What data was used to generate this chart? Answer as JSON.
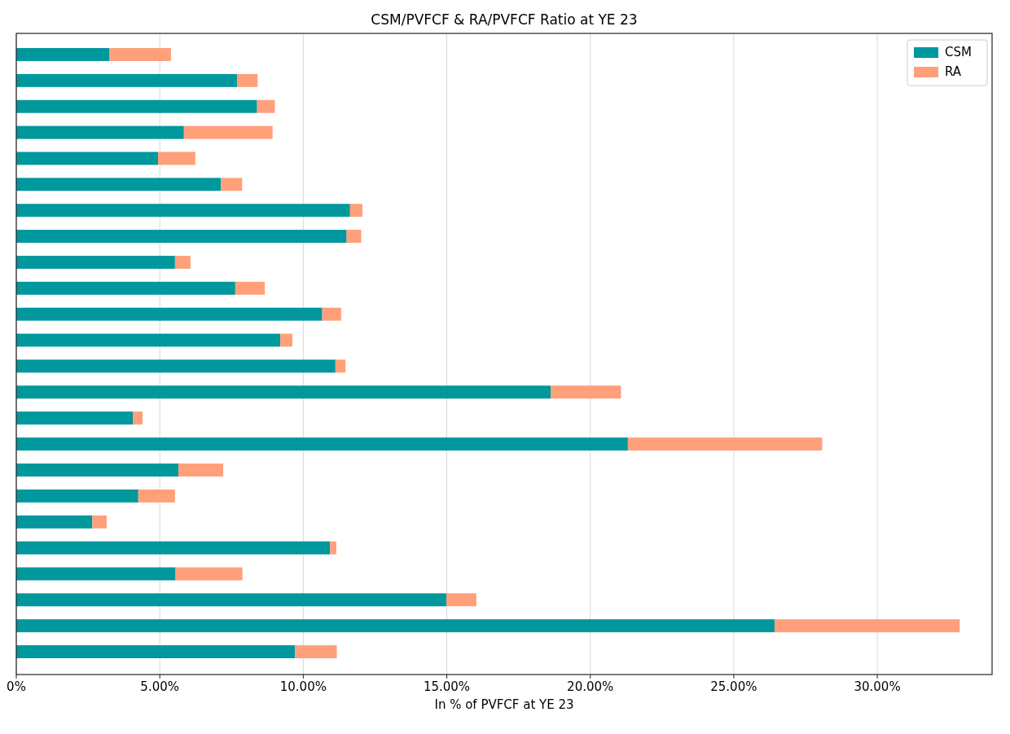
{
  "chart_data": {
    "type": "bar",
    "orientation": "horizontal",
    "stacked": true,
    "title": "CSM/PVFCF & RA/PVFCF Ratio at YE 23",
    "xlabel": "In % of PVFCF at YE 23",
    "categories": [
      null,
      null,
      null,
      null,
      null,
      null,
      null,
      null,
      null,
      null,
      null,
      null,
      null,
      null,
      null,
      null,
      null,
      null,
      null,
      null,
      null,
      null,
      null,
      null
    ],
    "series": [
      {
        "name": "CSM",
        "color": "#00979d",
        "values": [
          3.25,
          7.69,
          8.39,
          5.84,
          4.94,
          7.13,
          11.63,
          11.51,
          5.53,
          7.63,
          10.66,
          9.2,
          11.12,
          18.62,
          4.06,
          21.31,
          5.65,
          4.25,
          2.65,
          10.93,
          5.55,
          14.99,
          26.42,
          9.71
        ]
      },
      {
        "name": "RA",
        "color": "#ffa07a",
        "values": [
          2.14,
          0.72,
          0.62,
          3.09,
          1.3,
          0.74,
          0.43,
          0.51,
          0.54,
          1.03,
          0.66,
          0.42,
          0.35,
          2.45,
          0.34,
          6.77,
          1.56,
          1.28,
          0.5,
          0.22,
          2.33,
          1.04,
          6.45,
          1.46
        ]
      }
    ],
    "xlim": [
      0,
      34
    ],
    "xticks": [
      {
        "value": 0,
        "label": "0%"
      },
      {
        "value": 5,
        "label": "5.00%"
      },
      {
        "value": 10,
        "label": "10.00%"
      },
      {
        "value": 15,
        "label": "15.00%"
      },
      {
        "value": 20,
        "label": "20.00%"
      },
      {
        "value": 25,
        "label": "25.00%"
      },
      {
        "value": 30,
        "label": "30.00%"
      }
    ],
    "grid": "x",
    "legend": "top right",
    "tick_labels": "x"
  }
}
